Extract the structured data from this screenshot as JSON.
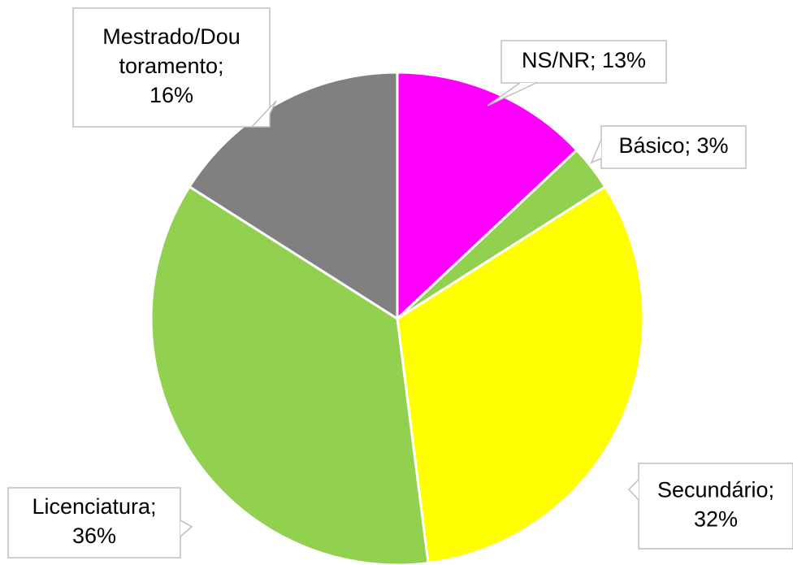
{
  "chart_data": {
    "type": "pie",
    "values": [
      13,
      3,
      32,
      36,
      16
    ],
    "value_labels": [
      [
        "NS/NR; 13%"
      ],
      [
        "Básico; 3%"
      ],
      [
        "Secundário;",
        "32%"
      ],
      [
        "Licenciatura;",
        "36%"
      ],
      [
        "Mestrado/Dou",
        "toramento;",
        "16%"
      ]
    ],
    "colors": [
      "#ff00ff",
      "#92d050",
      "#ffff00",
      "#92d050",
      "#808080"
    ]
  }
}
